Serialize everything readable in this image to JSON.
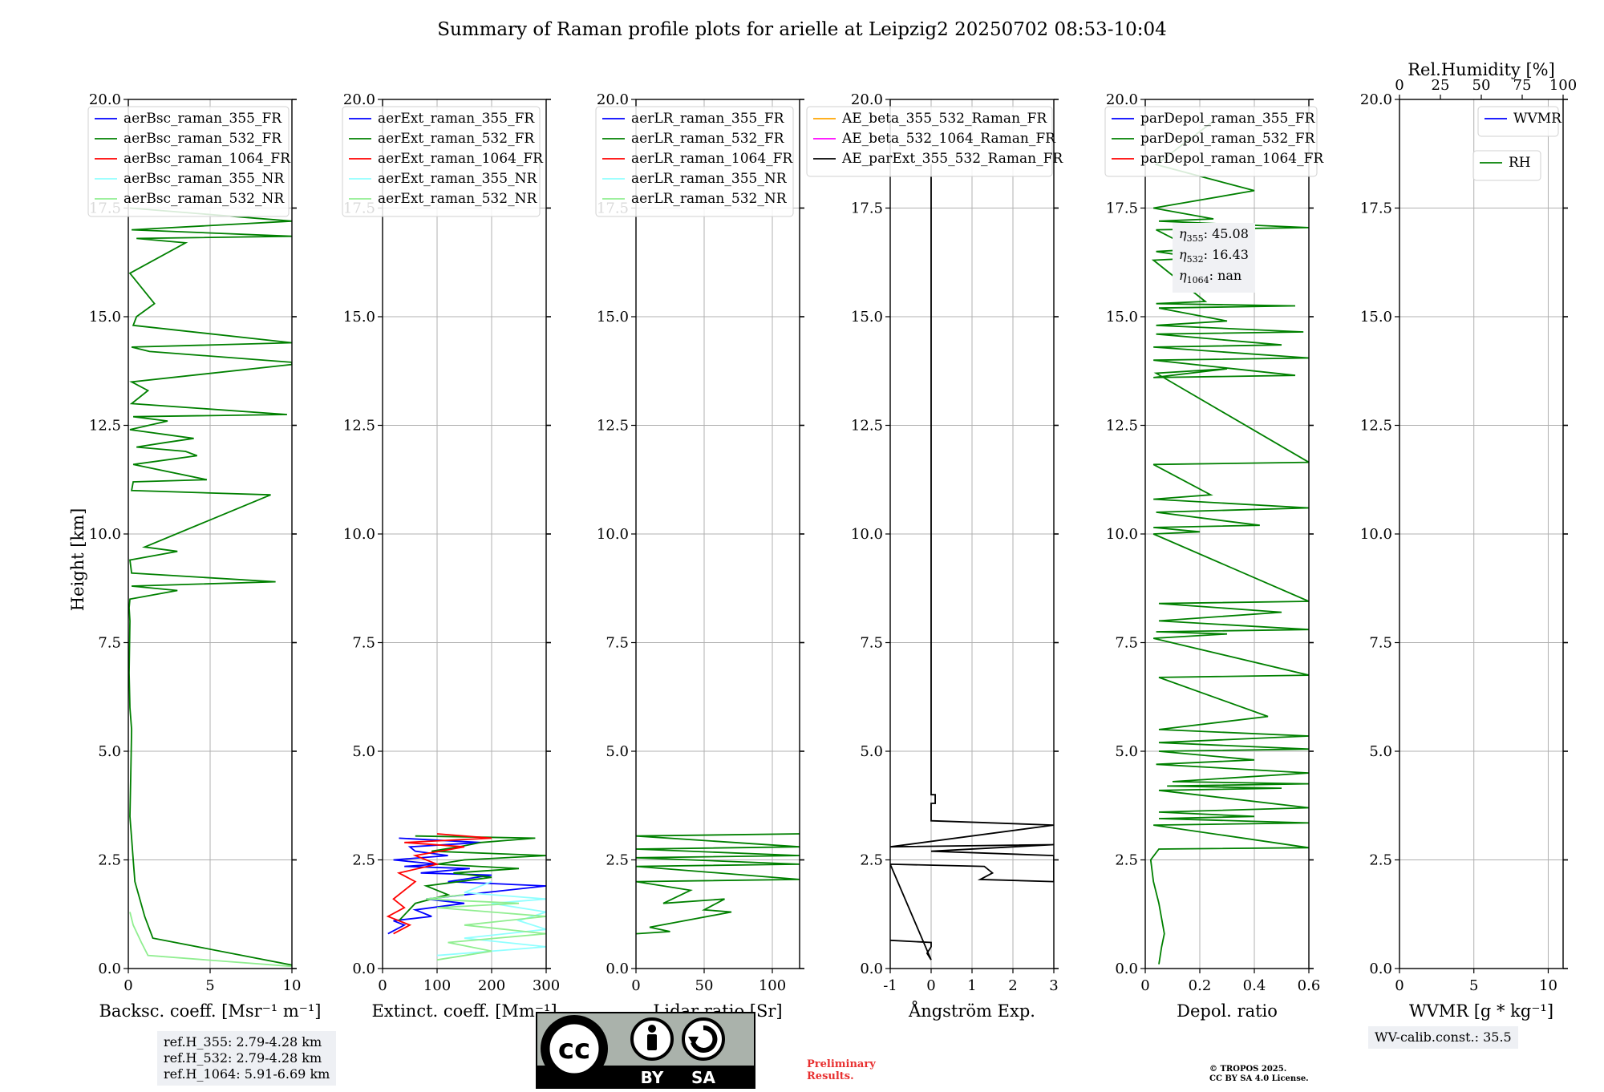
{
  "title": "Summary of Raman profile plots for arielle at Leipzig2 20250702 08:53-10:04",
  "y_axis_label": "Height [km]",
  "colors": {
    "blue": "#0000ff",
    "green": "#008000",
    "red": "#ff0000",
    "cyan": "#90ffff",
    "lightgreen": "#90ee90",
    "orange": "#ffa500",
    "magenta": "#ff00ff",
    "black": "#000000",
    "info_box_bg": "#eef0f4",
    "preliminary": "#e83030"
  },
  "chart_data": [
    {
      "type": "line",
      "id": "backscatter",
      "xlabel": "Backsc. coeff. [Msr⁻¹ m⁻¹]",
      "xlim": [
        0,
        10
      ],
      "xticks": [
        0,
        5,
        10
      ],
      "ylim": [
        0,
        20
      ],
      "yticks": [
        0.0,
        2.5,
        5.0,
        7.5,
        10.0,
        12.5,
        15.0,
        17.5,
        20.0
      ],
      "grid": true,
      "legend_position": "upper left",
      "legend": [
        {
          "label": "aerBsc_raman_355_FR",
          "color": "#0000ff"
        },
        {
          "label": "aerBsc_raman_532_FR",
          "color": "#008000"
        },
        {
          "label": "aerBsc_raman_1064_FR",
          "color": "#ff0000"
        },
        {
          "label": "aerBsc_raman_355_NR",
          "color": "#90ffff"
        },
        {
          "label": "aerBsc_raman_532_NR",
          "color": "#90ee90"
        }
      ],
      "series": [
        {
          "name": "aerBsc_raman_532_FR",
          "color": "#008000",
          "x": [
            10,
            1.5,
            1.3,
            1.0,
            0.7,
            0.4,
            0.3,
            0.2,
            0.1,
            0.15,
            0.2,
            0.1,
            0.05,
            0.1,
            0.05,
            0.1,
            3,
            0.2,
            9,
            0.2,
            0.1,
            3,
            1,
            8.7,
            0.2,
            0.3,
            4.8,
            0.3,
            4.2,
            3.5,
            0.5,
            2.2,
            4.0,
            0.1,
            2.4,
            0.3,
            9.7,
            0.2,
            1.2,
            0.2,
            10,
            10,
            1.3,
            0.2,
            10,
            0.3,
            0.5,
            1.6,
            0.1,
            3.5,
            0.5,
            10,
            0.2,
            10,
            0.1
          ],
          "y": [
            0.08,
            0.7,
            0.9,
            1.2,
            1.6,
            2.0,
            2.5,
            3.0,
            3.5,
            4.5,
            5.5,
            6.0,
            6.8,
            8.0,
            8.3,
            8.5,
            8.7,
            8.8,
            8.9,
            9.1,
            9.4,
            9.6,
            9.7,
            10.9,
            11.0,
            11.2,
            11.25,
            11.6,
            11.8,
            11.9,
            12.0,
            12.1,
            12.2,
            12.4,
            12.6,
            12.7,
            12.75,
            13.0,
            13.3,
            13.5,
            13.9,
            13.95,
            14.2,
            14.3,
            14.4,
            14.8,
            15.0,
            15.3,
            16.0,
            16.7,
            16.8,
            16.85,
            17.0,
            17.2,
            17.5
          ]
        },
        {
          "name": "aerBsc_raman_532_NR",
          "color": "#90ee90",
          "x": [
            10,
            1.2,
            0.8,
            0.3,
            0.1
          ],
          "y": [
            0.05,
            0.3,
            0.6,
            1.0,
            1.3
          ]
        }
      ],
      "info_box": [
        "ref.H_355: 2.79-4.28 km",
        "ref.H_532: 2.79-4.28 km",
        "ref.H_1064: 5.91-6.69 km"
      ]
    },
    {
      "type": "line",
      "id": "extinction",
      "xlabel": "Extinct. coeff. [Mm⁻¹]",
      "xlim": [
        0,
        300
      ],
      "xticks": [
        0,
        100,
        200,
        300
      ],
      "ylim": [
        0,
        20
      ],
      "yticks": [
        0.0,
        2.5,
        5.0,
        7.5,
        10.0,
        12.5,
        15.0,
        17.5,
        20.0
      ],
      "grid": true,
      "legend_position": "upper left",
      "legend": [
        {
          "label": "aerExt_raman_355_FR",
          "color": "#0000ff"
        },
        {
          "label": "aerExt_raman_532_FR",
          "color": "#008000"
        },
        {
          "label": "aerExt_raman_1064_FR",
          "color": "#ff0000"
        },
        {
          "label": "aerExt_raman_355_NR",
          "color": "#90ffff"
        },
        {
          "label": "aerExt_raman_532_NR",
          "color": "#90ee90"
        }
      ],
      "series": [
        {
          "name": "aerExt_raman_355_FR",
          "color": "#0000ff",
          "x": [
            10,
            40,
            20,
            90,
            60,
            150,
            80,
            300,
            120,
            200,
            70,
            160,
            40,
            100,
            20,
            120,
            60,
            50,
            180,
            30
          ],
          "y": [
            0.8,
            1.0,
            1.1,
            1.2,
            1.35,
            1.5,
            1.6,
            1.9,
            2.0,
            2.15,
            2.2,
            2.3,
            2.35,
            2.4,
            2.5,
            2.6,
            2.7,
            2.8,
            2.9,
            3.0
          ]
        },
        {
          "name": "aerExt_raman_532_FR",
          "color": "#008000",
          "x": [
            30,
            60,
            120,
            80,
            200,
            130,
            250,
            100,
            150,
            300,
            90,
            140,
            180,
            280,
            60
          ],
          "y": [
            1.1,
            1.5,
            1.7,
            1.9,
            2.1,
            2.2,
            2.3,
            2.4,
            2.5,
            2.6,
            2.7,
            2.8,
            2.9,
            3.0,
            3.05
          ]
        },
        {
          "name": "aerExt_raman_1064_FR",
          "color": "#ff0000",
          "x": [
            20,
            50,
            10,
            40,
            20,
            60,
            30,
            100,
            60,
            150,
            40,
            200,
            100
          ],
          "y": [
            0.8,
            1.0,
            1.2,
            1.4,
            1.6,
            2.0,
            2.2,
            2.4,
            2.6,
            2.8,
            2.9,
            3.0,
            3.1
          ]
        },
        {
          "name": "aerExt_raman_355_NR",
          "color": "#90ffff",
          "x": [
            100,
            300,
            150,
            300,
            250,
            300,
            200,
            300,
            150,
            200
          ],
          "y": [
            0.3,
            0.5,
            0.7,
            0.9,
            1.1,
            1.3,
            1.5,
            1.6,
            1.75,
            2.0
          ]
        },
        {
          "name": "aerExt_raman_532_NR",
          "color": "#90ee90",
          "x": [
            100,
            200,
            120,
            300,
            150,
            300,
            100,
            250,
            80,
            150
          ],
          "y": [
            0.2,
            0.4,
            0.6,
            0.8,
            1.0,
            1.2,
            1.4,
            1.5,
            1.6,
            1.7
          ]
        }
      ]
    },
    {
      "type": "line",
      "id": "lidar_ratio",
      "xlabel": "Lidar ratio [Sr]",
      "xlim": [
        0,
        120
      ],
      "xticks": [
        0,
        50,
        100
      ],
      "ylim": [
        0,
        20
      ],
      "yticks": [
        0.0,
        2.5,
        5.0,
        7.5,
        10.0,
        12.5,
        15.0,
        17.5,
        20.0
      ],
      "grid": true,
      "legend_position": "upper left",
      "legend": [
        {
          "label": "aerLR_raman_355_FR",
          "color": "#0000ff"
        },
        {
          "label": "aerLR_raman_532_FR",
          "color": "#008000"
        },
        {
          "label": "aerLR_raman_1064_FR",
          "color": "#ff0000"
        },
        {
          "label": "aerLR_raman_355_NR",
          "color": "#90ffff"
        },
        {
          "label": "aerLR_raman_532_NR",
          "color": "#90ee90"
        }
      ],
      "series": [
        {
          "name": "aerLR_raman_532_FR",
          "color": "#008000",
          "x": [
            0,
            25,
            10,
            70,
            50,
            65,
            20,
            40,
            0,
            120,
            0,
            120,
            0,
            120,
            0,
            120,
            0,
            120
          ],
          "y": [
            0.8,
            0.85,
            0.95,
            1.3,
            1.35,
            1.6,
            1.5,
            1.8,
            2.0,
            2.05,
            2.35,
            2.4,
            2.55,
            2.6,
            2.75,
            2.8,
            3.05,
            3.1
          ]
        }
      ]
    },
    {
      "type": "line",
      "id": "angstrom",
      "xlabel": "Ångström Exp.",
      "xlim": [
        -1,
        3
      ],
      "xticks": [
        -1,
        0,
        1,
        2,
        3
      ],
      "ylim": [
        0,
        20
      ],
      "yticks": [
        0.0,
        2.5,
        5.0,
        7.5,
        10.0,
        12.5,
        15.0,
        17.5,
        20.0
      ],
      "grid": true,
      "legend_position": "upper right",
      "legend": [
        {
          "label": "AE_beta_355_532_Raman_FR",
          "color": "#ffa500"
        },
        {
          "label": "AE_beta_532_1064_Raman_FR",
          "color": "#ff00ff"
        },
        {
          "label": "AE_parExt_355_532_Raman_FR",
          "color": "#000000"
        }
      ],
      "series": [
        {
          "name": "AE_parExt_355_532_Raman_FR",
          "color": "#000000",
          "x": [
            -1,
            0,
            0,
            -0.1,
            0,
            -1,
            1.3,
            1.5,
            1.2,
            3,
            3,
            0,
            3,
            -1,
            3,
            0,
            0,
            0.1,
            0.1,
            0,
            0
          ],
          "y": [
            0.65,
            0.6,
            0.5,
            0.35,
            0.2,
            2.4,
            2.35,
            2.2,
            2.05,
            2.0,
            2.6,
            2.7,
            2.85,
            2.8,
            3.3,
            3.4,
            3.8,
            3.8,
            4.0,
            4.0,
            18.5
          ]
        }
      ]
    },
    {
      "type": "line",
      "id": "depol",
      "xlabel": "Depol. ratio",
      "xlim": [
        0,
        0.6
      ],
      "xticks": [
        0.0,
        0.2,
        0.4,
        0.6
      ],
      "ylim": [
        0,
        20
      ],
      "yticks": [
        0.0,
        2.5,
        5.0,
        7.5,
        10.0,
        12.5,
        15.0,
        17.5,
        20.0
      ],
      "grid": true,
      "legend_position": "upper left",
      "legend": [
        {
          "label": "parDepol_raman_355_FR",
          "color": "#0000ff"
        },
        {
          "label": "parDepol_raman_532_FR",
          "color": "#008000"
        },
        {
          "label": "parDepol_raman_1064_FR",
          "color": "#ff0000"
        }
      ],
      "series": [
        {
          "name": "parDepol_raman_532_FR",
          "color": "#008000",
          "x": [
            0.05,
            0.06,
            0.07,
            0.05,
            0.03,
            0.02,
            0.05,
            0.6,
            0.03,
            0.6,
            0.05,
            0.4,
            0.05,
            0.6,
            0.05,
            0.5,
            0.08,
            0.6,
            0.1,
            0.6,
            0.04,
            0.4,
            0.05,
            0.6,
            0.05,
            0.6,
            0.05,
            0.45,
            0.05,
            0.6,
            0.03,
            0.3,
            0.04,
            0.6,
            0.05,
            0.5,
            0.05,
            0.6,
            0.03,
            0.2,
            0.03,
            0.42,
            0.04,
            0.6,
            0.03,
            0.24,
            0.03,
            0.6,
            0.04,
            0.3,
            0.03,
            0.55,
            0.03,
            0.6,
            0.03,
            0.5,
            0.04,
            0.58,
            0.04,
            0.3,
            0.05,
            0.55,
            0.04,
            0.22,
            0.03,
            0.2,
            0.04,
            0.18,
            0.04,
            0.6,
            0.05,
            0.25,
            0.03,
            0.4,
            0.04,
            0.25
          ],
          "y": [
            0.1,
            0.5,
            0.8,
            1.5,
            2.0,
            2.5,
            2.75,
            2.78,
            3.3,
            3.35,
            3.45,
            3.5,
            3.6,
            3.7,
            4.1,
            4.15,
            4.2,
            4.25,
            4.3,
            4.5,
            4.7,
            4.8,
            5.0,
            5.05,
            5.2,
            5.35,
            5.5,
            5.8,
            6.7,
            6.75,
            7.6,
            7.7,
            7.75,
            7.8,
            8.0,
            8.2,
            8.4,
            8.45,
            10.0,
            10.05,
            10.15,
            10.2,
            10.5,
            10.6,
            10.8,
            10.9,
            11.6,
            11.65,
            13.7,
            13.8,
            13.6,
            13.65,
            14.0,
            14.05,
            14.3,
            14.35,
            14.6,
            14.65,
            14.8,
            14.9,
            15.2,
            15.25,
            15.3,
            15.35,
            16.3,
            16.35,
            16.5,
            16.55,
            17.0,
            17.05,
            17.2,
            17.25,
            17.5,
            17.9,
            18.5,
            19.5
          ]
        }
      ],
      "eta_lines": [
        {
          "sym": "η",
          "sub": "355",
          "value": ": 45.08"
        },
        {
          "sym": "η",
          "sub": "532",
          "value": ": 16.43"
        },
        {
          "sym": "η",
          "sub": "1064",
          "value": ": nan"
        }
      ]
    },
    {
      "type": "line",
      "id": "wvmr",
      "xlabel": "WVMR [g * kg⁻¹]",
      "xlim": [
        0,
        11
      ],
      "xticks": [
        0,
        5,
        10
      ],
      "top_xlabel": "Rel.Humidity [%]",
      "top_xlim": [
        0,
        100
      ],
      "top_xticks": [
        0,
        25,
        50,
        75,
        100
      ],
      "ylim": [
        0,
        20
      ],
      "yticks": [
        0.0,
        2.5,
        5.0,
        7.5,
        10.0,
        12.5,
        15.0,
        17.5,
        20.0
      ],
      "grid": true,
      "legend": [
        {
          "label": "WVMR",
          "color": "#0000ff"
        }
      ],
      "legend2": [
        {
          "label": "RH",
          "color": "#008000"
        }
      ],
      "series": [],
      "info_box": [
        "WV-calib.const.: 35.5"
      ]
    }
  ],
  "license": {
    "badge_main": "cc",
    "badge_by": "BY",
    "badge_sa": "SA",
    "preliminary": [
      "Preliminary",
      "Results."
    ],
    "copyright": [
      "© TROPOS 2025.",
      "CC BY SA 4.0 License."
    ]
  }
}
